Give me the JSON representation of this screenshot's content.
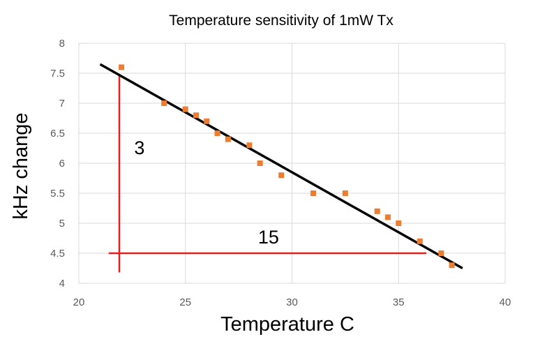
{
  "chart_data": {
    "type": "scatter",
    "title": "Temperature sensitivity of 1mW Tx",
    "xlabel": "Temperature C",
    "ylabel": "kHz change",
    "xlim": [
      20,
      40
    ],
    "ylim": [
      4,
      8
    ],
    "x_ticks": [
      "20",
      "25",
      "30",
      "35",
      "40"
    ],
    "y_ticks": [
      "4",
      "4.5",
      "5",
      "5.5",
      "6",
      "6.5",
      "7",
      "7.5",
      "8"
    ],
    "grid": true,
    "legend": "none",
    "series": [
      {
        "color": "#ED7D31",
        "points": [
          {
            "x": 22,
            "y": 7.6
          },
          {
            "x": 24,
            "y": 7.0
          },
          {
            "x": 25,
            "y": 6.9
          },
          {
            "x": 25.5,
            "y": 6.8
          },
          {
            "x": 26,
            "y": 6.7
          },
          {
            "x": 26.5,
            "y": 6.5
          },
          {
            "x": 27,
            "y": 6.4
          },
          {
            "x": 28,
            "y": 6.3
          },
          {
            "x": 28.5,
            "y": 6.0
          },
          {
            "x": 29.5,
            "y": 5.8
          },
          {
            "x": 31,
            "y": 5.5
          },
          {
            "x": 32.5,
            "y": 5.5
          },
          {
            "x": 34,
            "y": 5.2
          },
          {
            "x": 34.5,
            "y": 5.1
          },
          {
            "x": 35,
            "y": 5.0
          },
          {
            "x": 36,
            "y": 4.7
          },
          {
            "x": 37,
            "y": 4.5
          },
          {
            "x": 37.5,
            "y": 4.3
          }
        ]
      }
    ],
    "trendline": {
      "color": "#000000",
      "x": [
        21,
        38
      ],
      "y": [
        7.65,
        4.25
      ]
    },
    "annotations": {
      "color": "#E02020",
      "vertical": {
        "x": 21.9,
        "y": [
          4.18,
          7.45
        ],
        "label": "3",
        "label_at": {
          "x": 22.6,
          "y": 6.15
        }
      },
      "horizontal": {
        "y": 4.5,
        "x": [
          21.4,
          36.3
        ],
        "label": "15",
        "label_at": {
          "x": 28.9,
          "y": 4.66
        }
      }
    }
  }
}
